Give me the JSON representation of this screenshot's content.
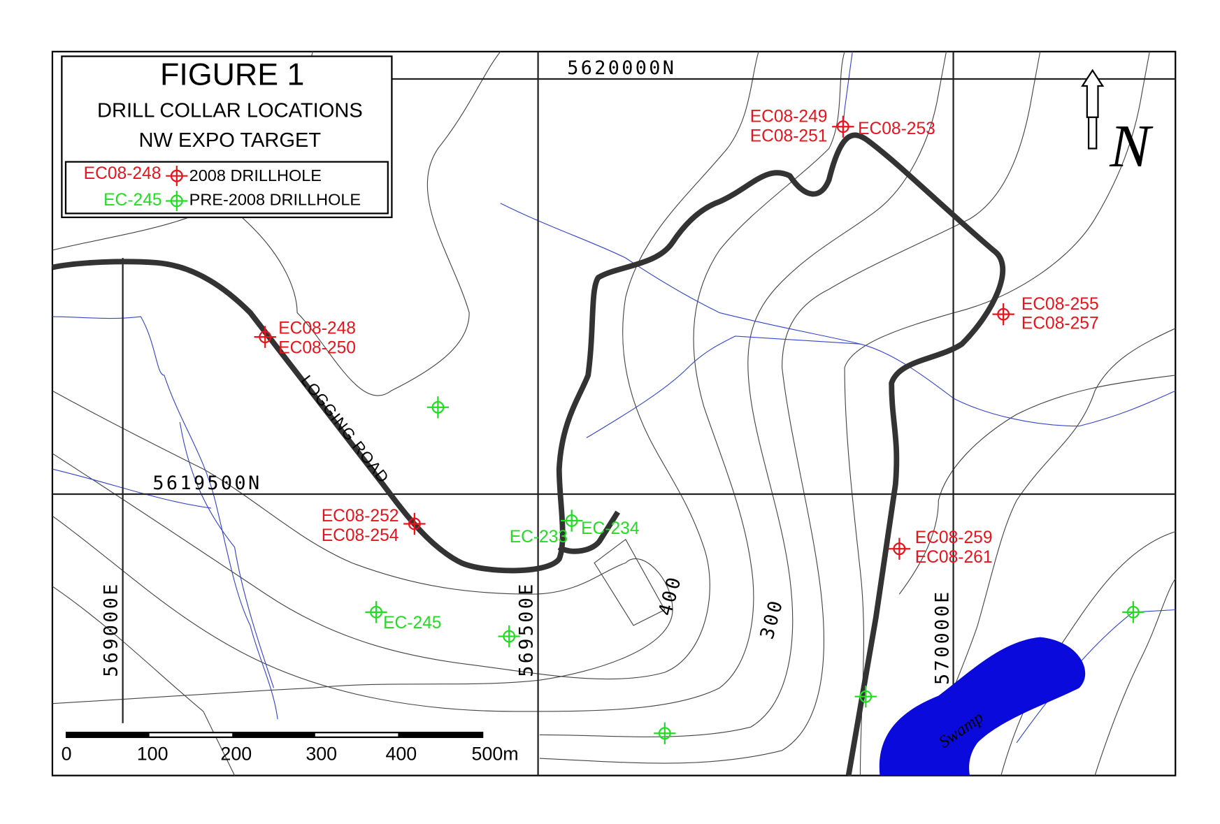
{
  "title": "FIGURE 1",
  "subtitle": [
    "DRILL COLLAR LOCATIONS",
    "NW EXPO TARGET"
  ],
  "legend": [
    {
      "sample": "EC08-248",
      "label": "2008 DRILLHOLE"
    },
    {
      "sample": "EC-245",
      "label": "PRE-2008 DRILLHOLE"
    }
  ],
  "grid_labels": [
    "5620000N",
    "5619500N",
    "569000E",
    "569500E",
    "570000E"
  ],
  "contour_labels": [
    "400",
    "300"
  ],
  "features": {
    "road": "LOGGING ROAD",
    "swamp": "Swamp"
  },
  "north": "N",
  "scale_bar": [
    "0",
    "100",
    "200",
    "300",
    "400",
    "500m"
  ],
  "drillholes_2008": [
    "EC08-249",
    "EC08-251",
    "EC08-253",
    "EC08-248",
    "EC08-250",
    "EC08-255",
    "EC08-257",
    "EC08-252",
    "EC08-254",
    "EC08-259",
    "EC08-261"
  ],
  "drillholes_pre2008": [
    "EC-233",
    "EC-234",
    "EC-245"
  ]
}
